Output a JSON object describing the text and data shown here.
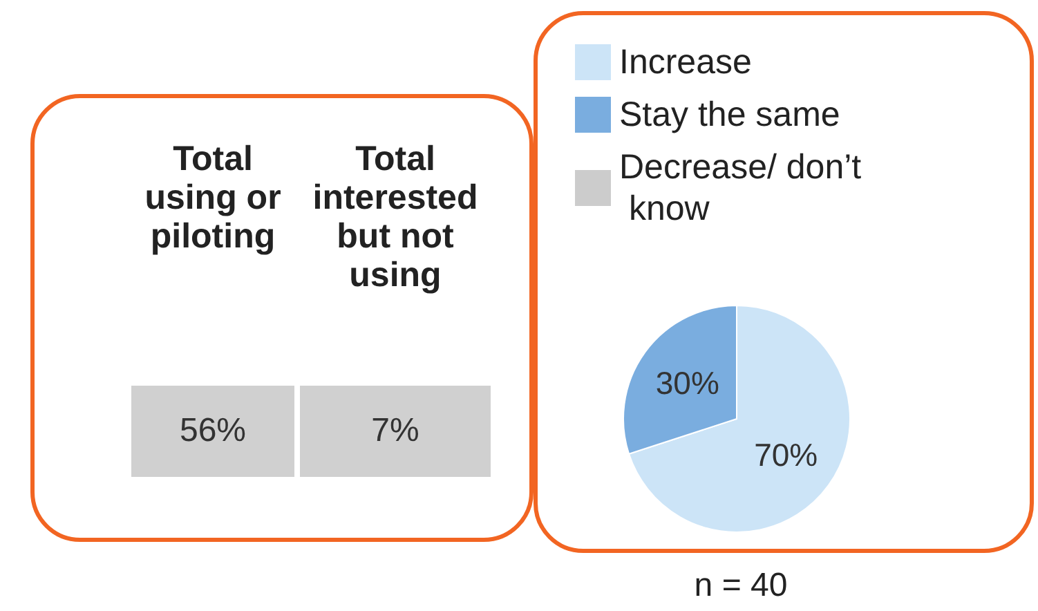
{
  "chart_data": [
    {
      "type": "other",
      "categories": [
        "Total using or piloting",
        "Total interested but not using"
      ],
      "values": [
        56,
        7
      ],
      "value_labels": [
        "56%",
        "7%"
      ],
      "color": "#d0d0d0"
    },
    {
      "type": "pie",
      "categories": [
        "Increase",
        "Stay the same",
        "Decrease/ don’t know"
      ],
      "values": [
        70,
        30,
        0
      ],
      "colors": [
        "#cce4f7",
        "#7aaddf",
        "#cccccc"
      ],
      "value_labels": [
        "70%",
        "30%",
        null
      ],
      "legend": "top",
      "annotations": [
        "n = 40"
      ]
    }
  ]
}
